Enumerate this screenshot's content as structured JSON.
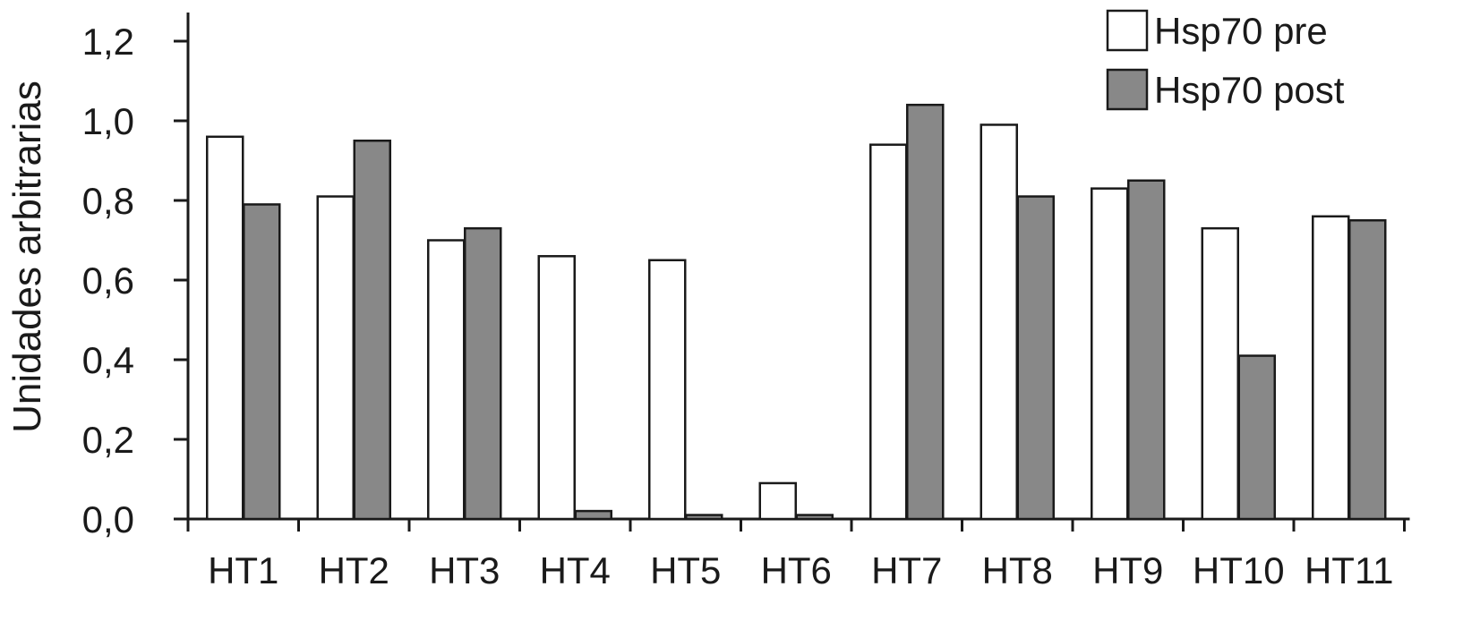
{
  "chart_data": {
    "type": "bar",
    "title": "",
    "xlabel": "",
    "ylabel": "Unidades arbitrarias",
    "ylim": [
      0,
      1.2
    ],
    "yticks": [
      "0,0",
      "0,2",
      "0,4",
      "0,6",
      "0,8",
      "1,0",
      "1,2"
    ],
    "categories": [
      "HT1",
      "HT2",
      "HT3",
      "HT4",
      "HT5",
      "HT6",
      "HT7",
      "HT8",
      "HT9",
      "HT10",
      "HT11"
    ],
    "series": [
      {
        "name": "Hsp70 pre",
        "color": "#ffffff",
        "values": [
          0.96,
          0.81,
          0.7,
          0.66,
          0.65,
          0.09,
          0.94,
          0.99,
          0.83,
          0.73,
          0.76
        ]
      },
      {
        "name": "Hsp70 post",
        "color": "#888888",
        "values": [
          0.79,
          0.95,
          0.73,
          0.02,
          0.01,
          0.01,
          1.04,
          0.81,
          0.85,
          0.41,
          0.75
        ]
      }
    ],
    "legend_position": "top-right",
    "grid": false
  }
}
